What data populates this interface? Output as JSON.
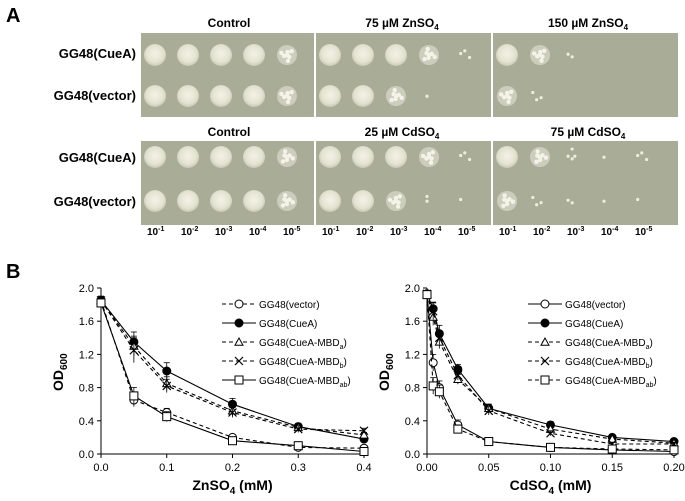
{
  "panel_a": {
    "label": "A",
    "rows_top": [
      "GG48(CueA)",
      "GG48(vector)"
    ],
    "rows_bottom": [
      "GG48(CueA)",
      "GG48(vector)"
    ],
    "conditions_zn": {
      "control": "Control",
      "mid": {
        "pre": "75 µM ZnSO",
        "sub": "4"
      },
      "high": {
        "pre": "150 µM ZnSO",
        "sub": "4"
      }
    },
    "conditions_cd": {
      "control": "Control",
      "mid": {
        "pre": "25 µM CdSO",
        "sub": "4"
      },
      "high": {
        "pre": "75 µM CdSO",
        "sub": "4"
      }
    },
    "dilutions": [
      {
        "base": "10",
        "exp": "-1"
      },
      {
        "base": "10",
        "exp": "-2"
      },
      {
        "base": "10",
        "exp": "-3"
      },
      {
        "base": "10",
        "exp": "-4"
      },
      {
        "base": "10",
        "exp": "-5"
      }
    ],
    "colors": {
      "plate": "#a9ac97",
      "colony": "#ebeadc"
    }
  },
  "panel_b": {
    "label": "B"
  },
  "legend": [
    {
      "pre": "GG48(vector)",
      "sub": ""
    },
    {
      "pre": "GG48(CueA)",
      "sub": ""
    },
    {
      "pre": "GG48(CueA-MBD",
      "sub": "a",
      "post": ")"
    },
    {
      "pre": "GG48(CueA-MBD",
      "sub": "b",
      "post": ")"
    },
    {
      "pre": "GG48(CueA-MBD",
      "sub": "ab",
      "post": ")"
    }
  ],
  "chart_data": [
    {
      "type": "line",
      "ylabel": {
        "pre": "OD",
        "sub": "600"
      },
      "xlabel": {
        "pre": "ZnSO",
        "sub": "4",
        "post": " (mM)"
      },
      "x": [
        0,
        0.05,
        0.1,
        0.2,
        0.3,
        0.4
      ],
      "xlim": [
        0,
        0.4
      ],
      "xticks": [
        "0.0",
        "0.1",
        "0.2",
        "0.3",
        "0.4"
      ],
      "xtick_values": [
        0,
        0.1,
        0.2,
        0.3,
        0.4
      ],
      "ylim": [
        0,
        2.0
      ],
      "yticks": [
        "0.0",
        "0.4",
        "0.8",
        "1.2",
        "1.6",
        "2.0"
      ],
      "ytick_values": [
        0,
        0.4,
        0.8,
        1.2,
        1.6,
        2.0
      ],
      "series": [
        {
          "name": "GG48(vector)",
          "marker": "circle-open",
          "dash": true,
          "values": [
            1.85,
            0.65,
            0.5,
            0.2,
            0.08,
            0.07
          ],
          "err": [
            0.05,
            0.08,
            0.05,
            0.03,
            0.02,
            0.02
          ]
        },
        {
          "name": "GG48(CueA)",
          "marker": "circle-filled",
          "dash": false,
          "values": [
            1.85,
            1.35,
            1.0,
            0.6,
            0.33,
            0.18
          ],
          "err": [
            0.05,
            0.12,
            0.1,
            0.07,
            0.04,
            0.03
          ]
        },
        {
          "name": "GG48(CueA-MBDa)",
          "marker": "triangle",
          "dash": true,
          "values": [
            1.85,
            1.3,
            0.85,
            0.52,
            0.32,
            0.23
          ],
          "err": [
            0.05,
            0.12,
            0.08,
            0.06,
            0.04,
            0.03
          ]
        },
        {
          "name": "GG48(CueA-MBDb)",
          "marker": "x",
          "dash": true,
          "values": [
            1.85,
            1.25,
            0.82,
            0.5,
            0.3,
            0.28
          ],
          "err": [
            0.05,
            0.15,
            0.08,
            0.06,
            0.04,
            0.03
          ]
        },
        {
          "name": "GG48(CueA-MBDab)",
          "marker": "square",
          "dash": false,
          "values": [
            1.82,
            0.7,
            0.45,
            0.16,
            0.1,
            0.03
          ],
          "err": [
            0.05,
            0.1,
            0.06,
            0.04,
            0.02,
            0.02
          ]
        }
      ]
    },
    {
      "type": "line",
      "ylabel": {
        "pre": "OD",
        "sub": "600"
      },
      "xlabel": {
        "pre": "CdSO",
        "sub": "4",
        "post": " (mM)"
      },
      "x": [
        0,
        0.005,
        0.01,
        0.025,
        0.05,
        0.1,
        0.15,
        0.2
      ],
      "xlim": [
        0,
        0.2
      ],
      "xticks": [
        "0.00",
        "0.05",
        "0.10",
        "0.15",
        "0.20"
      ],
      "xtick_values": [
        0,
        0.05,
        0.1,
        0.15,
        0.2
      ],
      "ylim": [
        0,
        2.0
      ],
      "yticks": [
        "0.0",
        "0.4",
        "0.8",
        "1.2",
        "1.6",
        "2.0"
      ],
      "ytick_values": [
        0,
        0.4,
        0.8,
        1.2,
        1.6,
        2.0
      ],
      "series": [
        {
          "name": "GG48(vector)",
          "marker": "circle-open",
          "dash": false,
          "values": [
            1.93,
            1.1,
            0.8,
            0.35,
            0.15,
            0.08,
            0.05,
            0.03
          ],
          "err": [
            0.04,
            0.1,
            0.08,
            0.06,
            0.04,
            0.02,
            0.02,
            0.02
          ]
        },
        {
          "name": "GG48(CueA)",
          "marker": "circle-filled",
          "dash": false,
          "values": [
            1.93,
            1.75,
            1.45,
            1.02,
            0.55,
            0.35,
            0.2,
            0.15
          ],
          "err": [
            0.04,
            0.08,
            0.1,
            0.06,
            0.05,
            0.04,
            0.03,
            0.02
          ]
        },
        {
          "name": "GG48(CueA-MBDa)",
          "marker": "triangle",
          "dash": true,
          "values": [
            1.93,
            1.65,
            1.35,
            0.9,
            0.55,
            0.3,
            0.18,
            0.13
          ],
          "err": [
            0.04,
            0.1,
            0.08,
            0.06,
            0.05,
            0.04,
            0.03,
            0.02
          ]
        },
        {
          "name": "GG48(CueA-MBDb)",
          "marker": "x",
          "dash": true,
          "values": [
            1.93,
            1.72,
            1.4,
            0.95,
            0.52,
            0.25,
            0.12,
            0.12
          ],
          "err": [
            0.04,
            0.1,
            0.08,
            0.06,
            0.05,
            0.03,
            0.02,
            0.02
          ]
        },
        {
          "name": "GG48(CueA-MBDab)",
          "marker": "square",
          "dash": true,
          "values": [
            1.92,
            0.82,
            0.75,
            0.3,
            0.15,
            0.08,
            0.06,
            0.05
          ],
          "err": [
            0.04,
            0.1,
            0.08,
            0.05,
            0.03,
            0.02,
            0.02,
            0.02
          ]
        }
      ]
    }
  ]
}
